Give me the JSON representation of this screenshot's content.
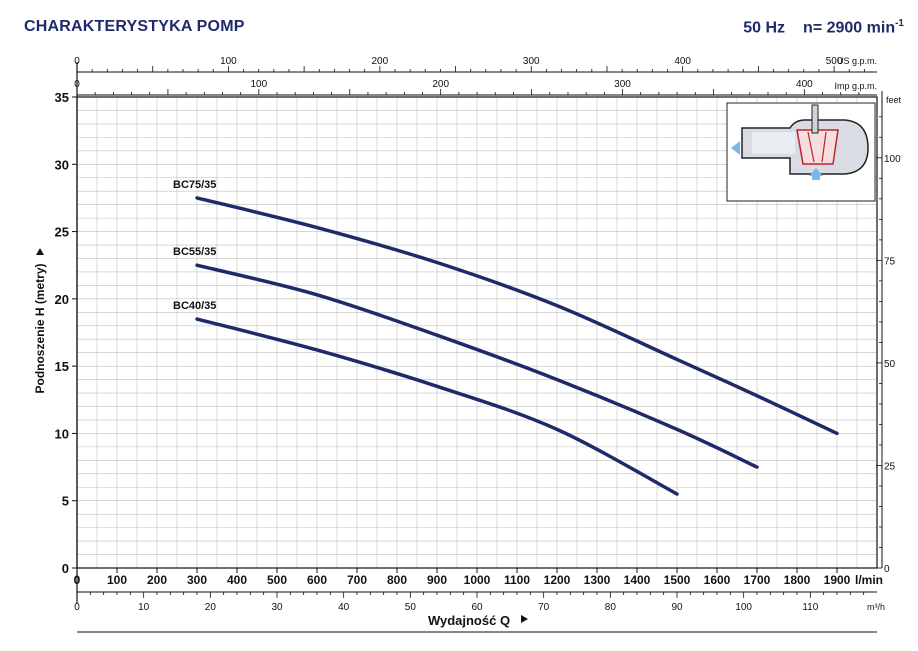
{
  "header": {
    "title": "CHARAKTERYSTYKA POMP",
    "frequency": "50 Hz",
    "speed_prefix": "n= 2900 min",
    "speed_sup": "-1"
  },
  "chart_data": {
    "type": "line",
    "ylabel": "Podnoszenie H  (metry)",
    "xlabel": "Wydajność Q",
    "x_unit": "l/min",
    "x2_unit": "m³/h",
    "top_unit_us": "US g.p.m.",
    "top_unit_imp": "Imp g.p.m.",
    "right_unit": "feet",
    "xlim": [
      0,
      2000
    ],
    "ylim": [
      0,
      35
    ],
    "x_ticks": [
      0,
      100,
      200,
      300,
      400,
      500,
      600,
      700,
      800,
      900,
      1000,
      1100,
      1200,
      1300,
      1400,
      1500,
      1600,
      1700,
      1800,
      1900
    ],
    "y_ticks": [
      0,
      5,
      10,
      15,
      20,
      25,
      30,
      35
    ],
    "m3h_ticks": [
      0,
      10,
      20,
      30,
      40,
      50,
      60,
      70,
      80,
      90,
      100,
      110
    ],
    "us_gpm_ticks": [
      0,
      100,
      200,
      300,
      400,
      500
    ],
    "imp_gpm_ticks": [
      0,
      100,
      200,
      300,
      400
    ],
    "feet_ticks": [
      0,
      25,
      50,
      75,
      100
    ],
    "grid": true,
    "series": [
      {
        "name": "BC75/35",
        "color": "#1f2a6b",
        "x": [
          300,
          600,
          900,
          1200,
          1500,
          1700,
          1900
        ],
        "y": [
          27.5,
          25.3,
          22.7,
          19.5,
          15.5,
          12.8,
          10.0
        ]
      },
      {
        "name": "BC55/35",
        "color": "#1f2a6b",
        "x": [
          300,
          600,
          900,
          1200,
          1500,
          1700
        ],
        "y": [
          22.5,
          20.3,
          17.3,
          14.0,
          10.3,
          7.5
        ]
      },
      {
        "name": "BC40/35",
        "color": "#1f2a6b",
        "x": [
          300,
          600,
          900,
          1200,
          1500
        ],
        "y": [
          18.5,
          16.2,
          13.5,
          10.3,
          5.5
        ]
      }
    ]
  }
}
